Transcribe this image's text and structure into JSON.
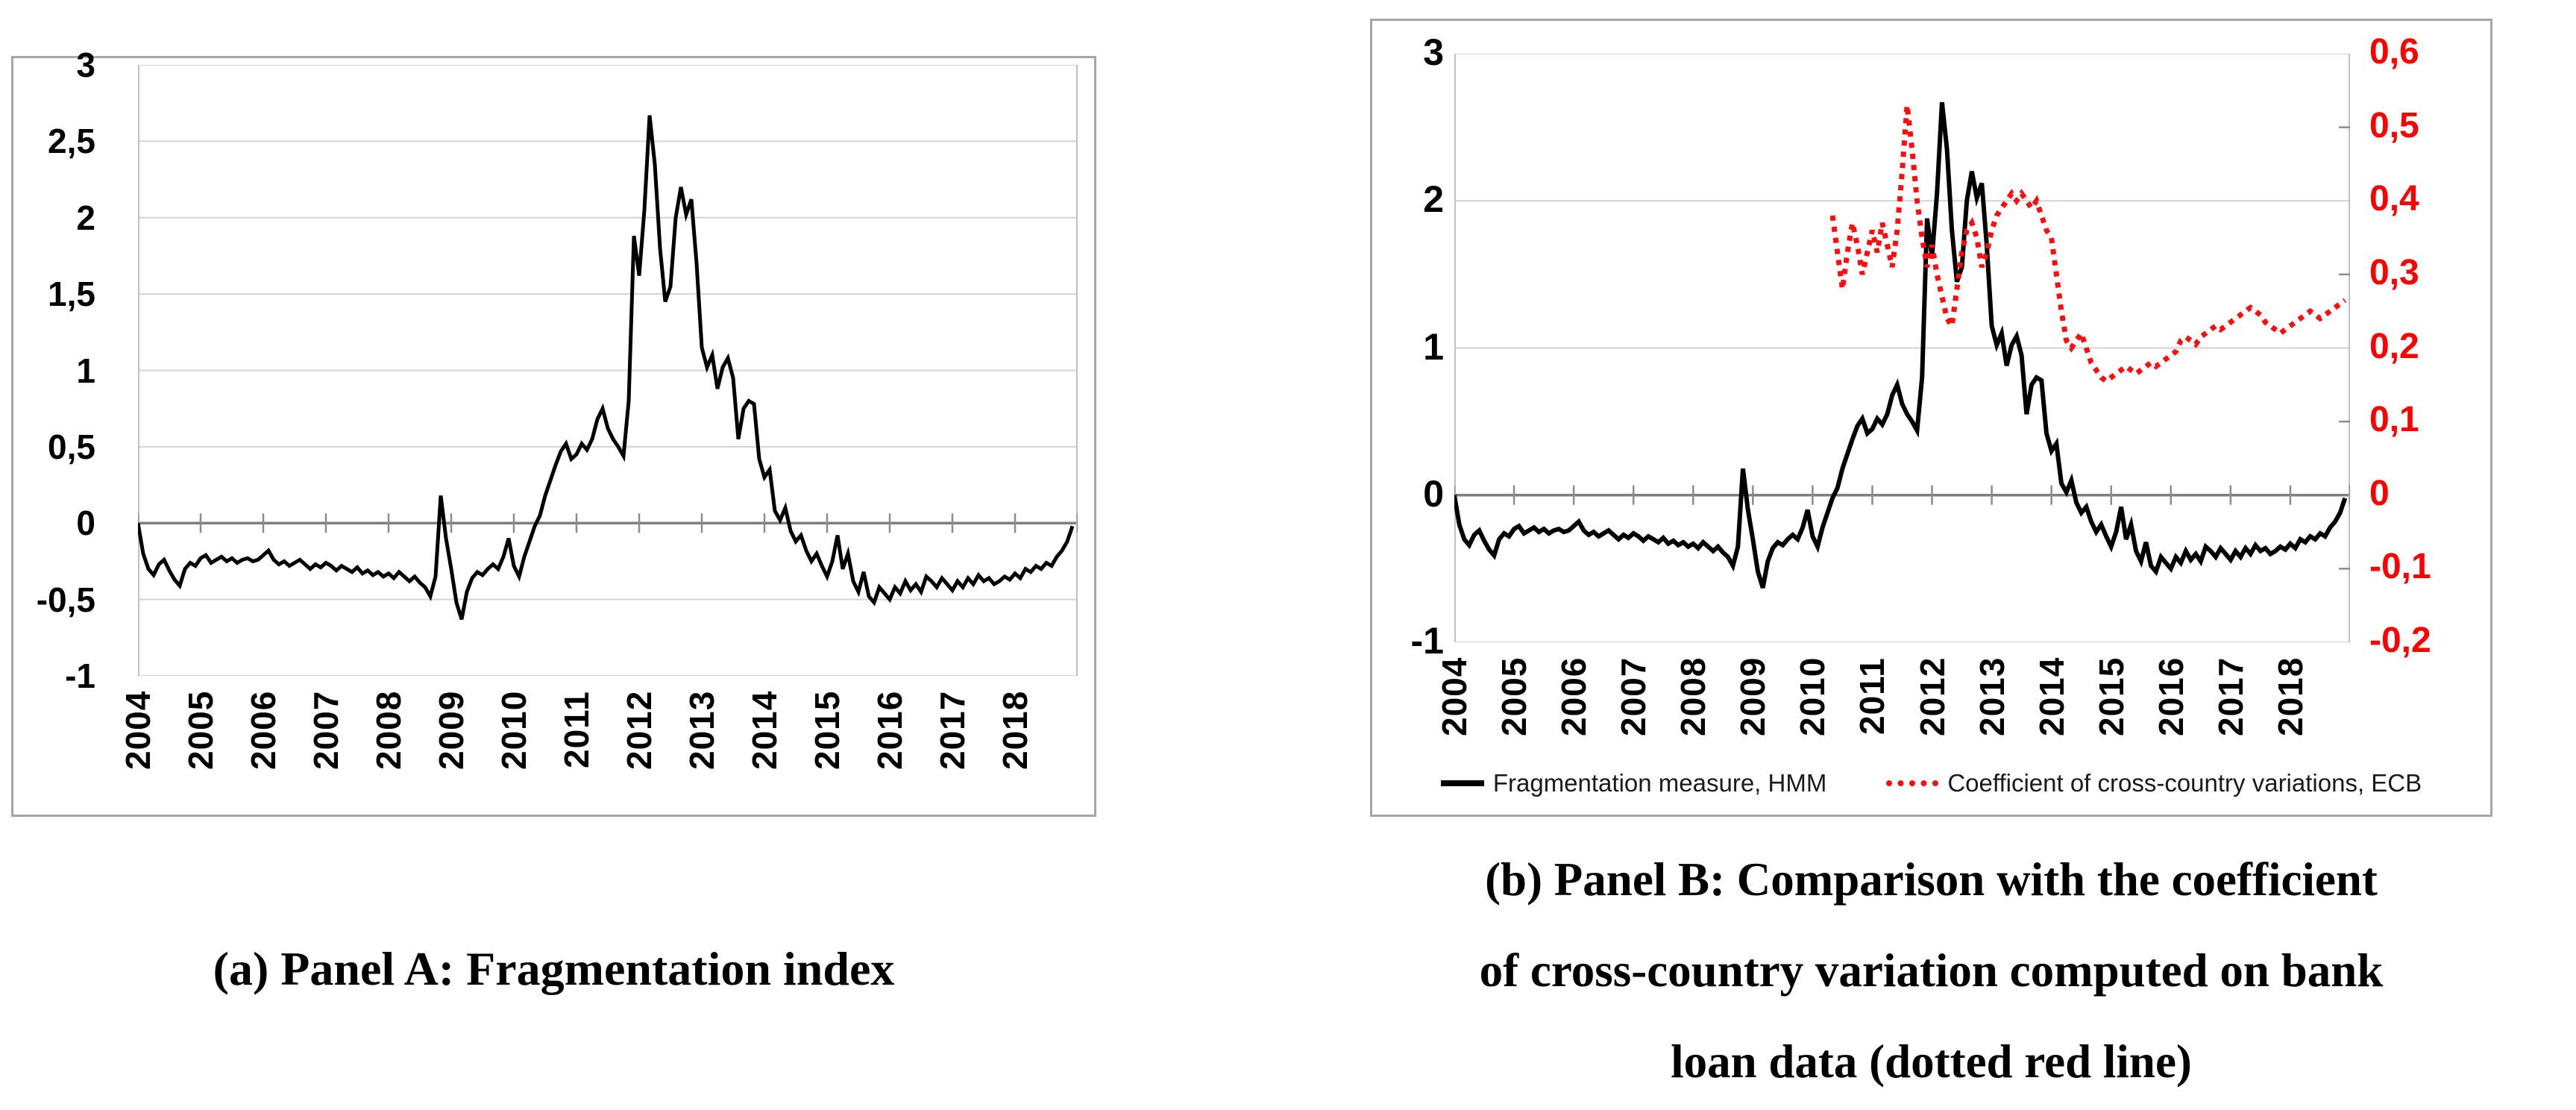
{
  "figure": {
    "panel_a": {
      "caption": "(a) Panel A: Fragmentation index",
      "y_tick_labels": [
        "3",
        "2,5",
        "2",
        "1,5",
        "1",
        "0,5",
        "0",
        "-0,5",
        "-1"
      ],
      "x_tick_labels": [
        "2004",
        "2005",
        "2006",
        "2007",
        "2008",
        "2009",
        "2010",
        "2011",
        "2012",
        "2013",
        "2014",
        "2015",
        "2016",
        "2017",
        "2018"
      ]
    },
    "panel_b": {
      "caption": "(b) Panel B: Comparison with the coefficient\nof cross-country variation computed on bank\nloan data (dotted red line)",
      "left_y_tick_labels": [
        "3",
        "2",
        "1",
        "0",
        "-1"
      ],
      "right_y_tick_labels": [
        "0,6",
        "0,5",
        "0,4",
        "0,3",
        "0,2",
        "0,1",
        "0",
        "-0,1",
        "-0,2"
      ],
      "x_tick_labels": [
        "2004",
        "2005",
        "2006",
        "2007",
        "2008",
        "2009",
        "2010",
        "2011",
        "2012",
        "2013",
        "2014",
        "2015",
        "2016",
        "2017",
        "2018"
      ],
      "legend": [
        {
          "label": "Fragmentation measure, HMM",
          "color": "#000000",
          "style": "solid"
        },
        {
          "label": "Coefficient of cross-country variations, ECB",
          "color": "#fd0d0d",
          "style": "dotted"
        }
      ]
    },
    "colors": {
      "red_accent": "#fe0000",
      "grid": "#d3d3d3",
      "zero_line": "#7f7f7f",
      "axis": "#c0c0c0",
      "chart_border": "#a6a6a6"
    }
  },
  "chart_data": [
    {
      "type": "line",
      "panel": "a",
      "title": "(a) Panel A: Fragmentation index",
      "xlabel": "",
      "ylabel": "",
      "xlim": [
        2004,
        2019
      ],
      "left_ylim": [
        -1,
        3
      ],
      "y_gridlines": [
        3,
        2.5,
        2,
        1.5,
        1,
        0.5,
        0,
        -0.5,
        -1
      ],
      "x_tick_years": [
        2004,
        2005,
        2006,
        2007,
        2008,
        2009,
        2010,
        2011,
        2012,
        2013,
        2014,
        2015,
        2016,
        2017,
        2018
      ],
      "x_tick_count": 15,
      "grid_color": "#d3d3d3",
      "zero_line_color": "#7f7f7f",
      "axis_color": "#c0c0c0",
      "series": [
        {
          "name": "Fragmentation index",
          "axis": "left",
          "color": "#000000",
          "width": 5,
          "x_start": 2004.0,
          "frequency": "monthly",
          "values": [
            0,
            -0.2,
            -0.3,
            -0.34,
            -0.27,
            -0.24,
            -0.31,
            -0.37,
            -0.41,
            -0.3,
            -0.26,
            -0.28,
            -0.23,
            -0.21,
            -0.26,
            -0.24,
            -0.22,
            -0.25,
            -0.23,
            -0.26,
            -0.24,
            -0.23,
            -0.25,
            -0.24,
            -0.21,
            -0.18,
            -0.24,
            -0.27,
            -0.25,
            -0.28,
            -0.26,
            -0.24,
            -0.27,
            -0.3,
            -0.27,
            -0.29,
            -0.26,
            -0.28,
            -0.31,
            -0.28,
            -0.3,
            -0.32,
            -0.29,
            -0.33,
            -0.31,
            -0.34,
            -0.32,
            -0.35,
            -0.33,
            -0.36,
            -0.32,
            -0.35,
            -0.38,
            -0.35,
            -0.39,
            -0.42,
            -0.48,
            -0.35,
            0.18,
            -0.1,
            -0.3,
            -0.52,
            -0.63,
            -0.45,
            -0.36,
            -0.32,
            -0.34,
            -0.3,
            -0.27,
            -0.3,
            -0.22,
            -0.1,
            -0.28,
            -0.35,
            -0.22,
            -0.12,
            -0.02,
            0.05,
            0.18,
            0.28,
            0.38,
            0.47,
            0.52,
            0.42,
            0.45,
            0.52,
            0.48,
            0.55,
            0.68,
            0.75,
            0.62,
            0.55,
            0.5,
            0.44,
            0.8,
            1.88,
            1.62,
            2.05,
            2.67,
            2.35,
            1.8,
            1.45,
            1.55,
            2,
            2.2,
            2.02,
            2.12,
            1.7,
            1.15,
            1.02,
            1.1,
            0.88,
            1.02,
            1.08,
            0.95,
            0.55,
            0.75,
            0.8,
            0.78,
            0.42,
            0.3,
            0.35,
            0.08,
            0.02,
            0.1,
            -0.05,
            -0.12,
            -0.08,
            -0.18,
            -0.25,
            -0.2,
            -0.28,
            -0.35,
            -0.25,
            -0.08,
            -0.3,
            -0.2,
            -0.38,
            -0.45,
            -0.32,
            -0.48,
            -0.52,
            -0.42,
            -0.46,
            -0.5,
            -0.42,
            -0.46,
            -0.38,
            -0.44,
            -0.4,
            -0.45,
            -0.35,
            -0.38,
            -0.42,
            -0.36,
            -0.4,
            -0.44,
            -0.38,
            -0.42,
            -0.36,
            -0.4,
            -0.34,
            -0.38,
            -0.36,
            -0.4,
            -0.38,
            -0.35,
            -0.37,
            -0.33,
            -0.36,
            -0.3,
            -0.32,
            -0.28,
            -0.3,
            -0.26,
            -0.28,
            -0.22,
            -0.18,
            -0.12,
            -0.02
          ]
        }
      ]
    },
    {
      "type": "line",
      "panel": "b",
      "title": "(b) Panel B: Comparison with the coefficient of cross-country variation computed on bank loan data (dotted red line)",
      "xlabel": "",
      "ylabel": "",
      "xlim": [
        2004,
        2019
      ],
      "left_ylim": [
        -1,
        3
      ],
      "right_ylim": [
        -0.2,
        0.6
      ],
      "y_gridlines": [
        3,
        2,
        1,
        0,
        -1
      ],
      "right_axis_minor_ticks": [
        0.5,
        0.3,
        0.1,
        -0.1
      ],
      "x_tick_years": [
        2004,
        2005,
        2006,
        2007,
        2008,
        2009,
        2010,
        2011,
        2012,
        2013,
        2014,
        2015,
        2016,
        2017,
        2018
      ],
      "x_tick_count": 15,
      "grid_color": "#d3d3d3",
      "zero_line_color": "#7f7f7f",
      "axis_color": "#c0c0c0",
      "legend_position": "bottom",
      "series": [
        {
          "name": "Fragmentation measure, HMM",
          "axis": "left",
          "color": "#000000",
          "width": 6,
          "x_start": 2004.0,
          "frequency": "monthly",
          "values": [
            0,
            -0.2,
            -0.3,
            -0.34,
            -0.27,
            -0.24,
            -0.31,
            -0.37,
            -0.41,
            -0.3,
            -0.26,
            -0.28,
            -0.23,
            -0.21,
            -0.26,
            -0.24,
            -0.22,
            -0.25,
            -0.23,
            -0.26,
            -0.24,
            -0.23,
            -0.25,
            -0.24,
            -0.21,
            -0.18,
            -0.24,
            -0.27,
            -0.25,
            -0.28,
            -0.26,
            -0.24,
            -0.27,
            -0.3,
            -0.27,
            -0.29,
            -0.26,
            -0.28,
            -0.31,
            -0.28,
            -0.3,
            -0.32,
            -0.29,
            -0.33,
            -0.31,
            -0.34,
            -0.32,
            -0.35,
            -0.33,
            -0.36,
            -0.32,
            -0.35,
            -0.38,
            -0.35,
            -0.39,
            -0.42,
            -0.48,
            -0.35,
            0.18,
            -0.1,
            -0.3,
            -0.52,
            -0.63,
            -0.45,
            -0.36,
            -0.32,
            -0.34,
            -0.3,
            -0.27,
            -0.3,
            -0.22,
            -0.1,
            -0.28,
            -0.35,
            -0.22,
            -0.12,
            -0.02,
            0.05,
            0.18,
            0.28,
            0.38,
            0.47,
            0.52,
            0.42,
            0.45,
            0.52,
            0.48,
            0.55,
            0.68,
            0.75,
            0.62,
            0.55,
            0.5,
            0.44,
            0.8,
            1.88,
            1.62,
            2.05,
            2.67,
            2.35,
            1.8,
            1.45,
            1.55,
            2,
            2.2,
            2.02,
            2.12,
            1.7,
            1.15,
            1.02,
            1.1,
            0.88,
            1.02,
            1.08,
            0.95,
            0.55,
            0.75,
            0.8,
            0.78,
            0.42,
            0.3,
            0.35,
            0.08,
            0.02,
            0.1,
            -0.05,
            -0.12,
            -0.08,
            -0.18,
            -0.25,
            -0.2,
            -0.28,
            -0.35,
            -0.25,
            -0.08,
            -0.3,
            -0.2,
            -0.38,
            -0.45,
            -0.32,
            -0.48,
            -0.52,
            -0.42,
            -0.46,
            -0.5,
            -0.42,
            -0.46,
            -0.38,
            -0.44,
            -0.4,
            -0.45,
            -0.35,
            -0.38,
            -0.42,
            -0.36,
            -0.4,
            -0.44,
            -0.38,
            -0.42,
            -0.36,
            -0.4,
            -0.34,
            -0.38,
            -0.36,
            -0.4,
            -0.38,
            -0.35,
            -0.37,
            -0.33,
            -0.36,
            -0.3,
            -0.32,
            -0.28,
            -0.3,
            -0.26,
            -0.28,
            -0.22,
            -0.18,
            -0.12,
            -0.02
          ]
        },
        {
          "name": "Coefficient of cross-country variations, ECB",
          "axis": "right",
          "color": "#fd0d0d",
          "width": 7,
          "dash": "7 8",
          "x_start": 2010.333,
          "frequency": "monthly",
          "values": [
            0.38,
            0.33,
            0.28,
            0.33,
            0.37,
            0.34,
            0.3,
            0.33,
            0.36,
            0.33,
            0.37,
            0.34,
            0.31,
            0.36,
            0.44,
            0.53,
            0.47,
            0.4,
            0.35,
            0.31,
            0.34,
            0.3,
            0.27,
            0.24,
            0.23,
            0.28,
            0.33,
            0.36,
            0.37,
            0.35,
            0.31,
            0.33,
            0.36,
            0.38,
            0.39,
            0.4,
            0.41,
            0.4,
            0.41,
            0.4,
            0.39,
            0.4,
            0.38,
            0.36,
            0.35,
            0.3,
            0.25,
            0.21,
            0.2,
            0.21,
            0.22,
            0.2,
            0.18,
            0.17,
            0.16,
            0.155,
            0.16,
            0.165,
            0.17,
            0.175,
            0.17,
            0.165,
            0.17,
            0.175,
            0.18,
            0.175,
            0.18,
            0.185,
            0.19,
            0.195,
            0.21,
            0.215,
            0.21,
            0.205,
            0.215,
            0.22,
            0.225,
            0.23,
            0.225,
            0.23,
            0.235,
            0.24,
            0.245,
            0.25,
            0.255,
            0.25,
            0.245,
            0.235,
            0.23,
            0.225,
            0.22,
            0.225,
            0.23,
            0.235,
            0.24,
            0.245,
            0.25,
            0.245,
            0.24,
            0.245,
            0.25,
            0.255,
            0.26,
            0.265
          ]
        }
      ]
    }
  ]
}
